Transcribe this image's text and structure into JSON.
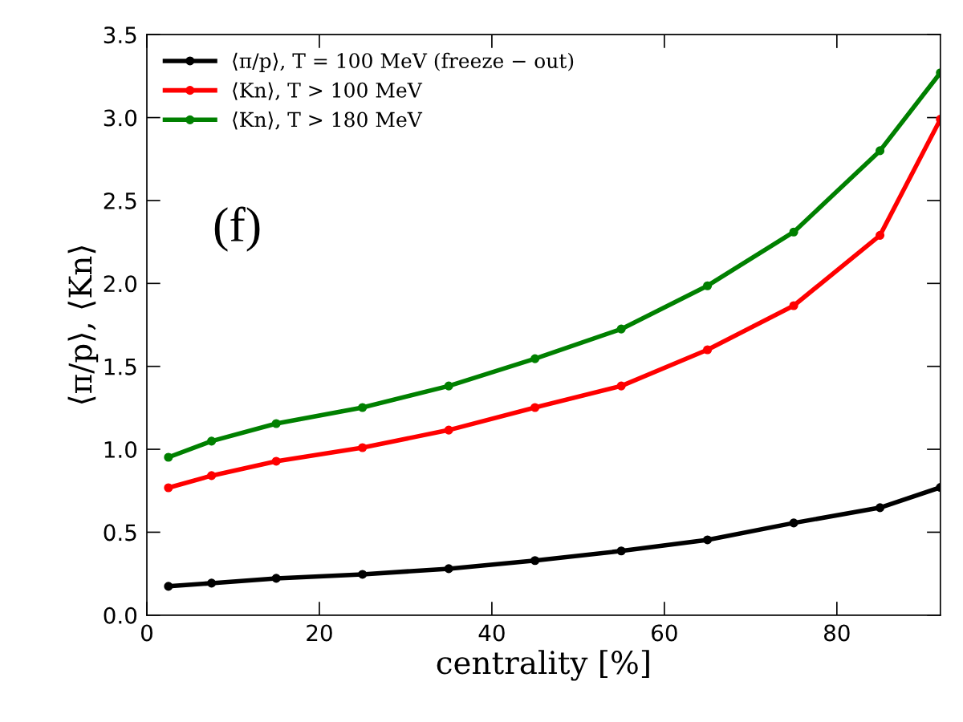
{
  "chart_data": {
    "type": "line",
    "xlabel": "centrality [%]",
    "ylabel": "⟨π/p⟩, ⟨Kn⟩",
    "x": [
      2.5,
      7.5,
      15,
      25,
      35,
      45,
      55,
      65,
      75,
      85,
      92
    ],
    "series": [
      {
        "name": "⟨π/p⟩, T = 100 MeV (freeze − out)",
        "color": "#000000",
        "values": [
          0.174,
          0.193,
          0.222,
          0.246,
          0.28,
          0.329,
          0.387,
          0.454,
          0.556,
          0.648,
          0.77
        ]
      },
      {
        "name": "⟨Kn⟩, T > 100 MeV",
        "color": "#ff0000",
        "values": [
          0.768,
          0.841,
          0.928,
          1.01,
          1.116,
          1.252,
          1.382,
          1.6,
          1.866,
          2.29,
          2.99
        ]
      },
      {
        "name": "⟨Kn⟩, T > 180 MeV",
        "color": "#008000",
        "values": [
          0.952,
          1.049,
          1.155,
          1.252,
          1.382,
          1.546,
          1.725,
          1.986,
          2.31,
          2.8,
          3.27
        ]
      }
    ],
    "xlim": [
      0,
      92
    ],
    "xticks": [
      0,
      20,
      40,
      60,
      80
    ],
    "ylim": [
      0,
      3.5
    ],
    "yticks": [
      {
        "value": 0,
        "label": "0.0"
      },
      0.5,
      {
        "value": 1,
        "label": "1.0"
      },
      1.5,
      {
        "value": 2,
        "label": "2.0"
      },
      2.5,
      {
        "value": 3,
        "label": "3.0"
      },
      3.5
    ],
    "annotations": [
      "(f)"
    ],
    "legend": "top left",
    "marker": "circle",
    "line_style": "solid",
    "grid": false
  }
}
